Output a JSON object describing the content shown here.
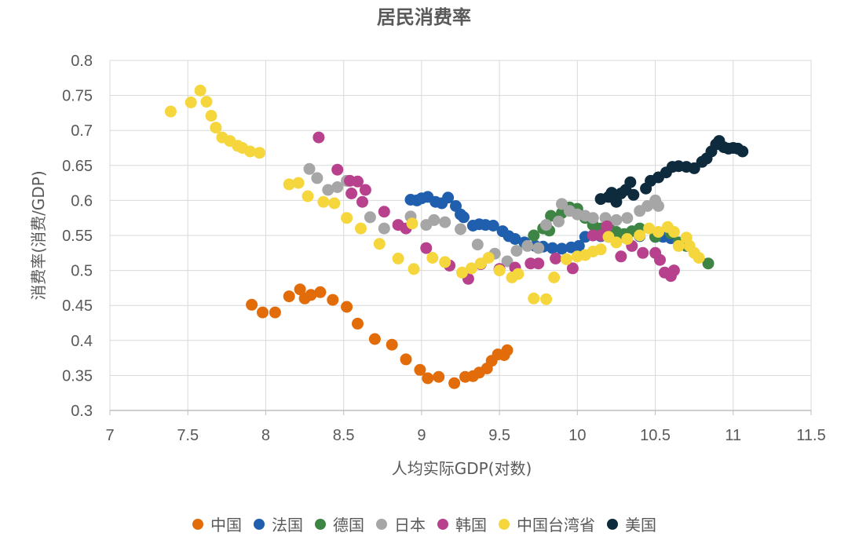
{
  "chart_data": {
    "type": "scatter",
    "title": "居民消费率",
    "xlabel": "人均实际GDP(对数)",
    "ylabel": "消费率(消费/GDP)",
    "xlim": [
      7,
      11.5
    ],
    "ylim": [
      0.3,
      0.8
    ],
    "x_ticks": [
      "7",
      "7.5",
      "8",
      "8.5",
      "9",
      "9.5",
      "10",
      "10.5",
      "11",
      "11.5"
    ],
    "y_ticks": [
      "0.3",
      "0.35",
      "0.4",
      "0.45",
      "0.5",
      "0.55",
      "0.6",
      "0.65",
      "0.7",
      "0.75",
      "0.8"
    ],
    "grid": true,
    "legend_position": "bottom",
    "series": [
      {
        "name": "中国",
        "color": "#E36C0A",
        "points": [
          [
            7.91,
            0.451
          ],
          [
            7.98,
            0.44
          ],
          [
            8.06,
            0.44
          ],
          [
            8.15,
            0.463
          ],
          [
            8.22,
            0.473
          ],
          [
            8.25,
            0.46
          ],
          [
            8.29,
            0.465
          ],
          [
            8.35,
            0.469
          ],
          [
            8.43,
            0.458
          ],
          [
            8.52,
            0.448
          ],
          [
            8.59,
            0.424
          ],
          [
            8.7,
            0.402
          ],
          [
            8.81,
            0.394
          ],
          [
            8.9,
            0.373
          ],
          [
            8.99,
            0.358
          ],
          [
            9.04,
            0.346
          ],
          [
            9.11,
            0.348
          ],
          [
            9.21,
            0.339
          ],
          [
            9.28,
            0.348
          ],
          [
            9.33,
            0.349
          ],
          [
            9.37,
            0.354
          ],
          [
            9.42,
            0.36
          ],
          [
            9.45,
            0.371
          ],
          [
            9.49,
            0.38
          ],
          [
            9.53,
            0.379
          ],
          [
            9.55,
            0.386
          ]
        ]
      },
      {
        "name": "法国",
        "color": "#1F5FAE",
        "points": [
          [
            8.93,
            0.601
          ],
          [
            8.97,
            0.6
          ],
          [
            9.0,
            0.603
          ],
          [
            9.04,
            0.605
          ],
          [
            9.09,
            0.598
          ],
          [
            9.13,
            0.596
          ],
          [
            9.17,
            0.604
          ],
          [
            9.22,
            0.592
          ],
          [
            9.25,
            0.58
          ],
          [
            9.27,
            0.576
          ],
          [
            9.33,
            0.564
          ],
          [
            9.37,
            0.566
          ],
          [
            9.41,
            0.565
          ],
          [
            9.46,
            0.564
          ],
          [
            9.52,
            0.556
          ],
          [
            9.56,
            0.549
          ],
          [
            9.6,
            0.545
          ],
          [
            9.66,
            0.54
          ],
          [
            9.73,
            0.535
          ],
          [
            9.78,
            0.534
          ],
          [
            9.84,
            0.532
          ],
          [
            9.9,
            0.531
          ],
          [
            9.96,
            0.533
          ],
          [
            10.01,
            0.535
          ],
          [
            10.05,
            0.548
          ],
          [
            10.1,
            0.55
          ],
          [
            10.15,
            0.549
          ],
          [
            10.2,
            0.548
          ],
          [
            10.3,
            0.548
          ],
          [
            10.4,
            0.549
          ],
          [
            10.5,
            0.548
          ],
          [
            10.55,
            0.548
          ],
          [
            10.6,
            0.546
          ]
        ]
      },
      {
        "name": "德国",
        "color": "#3E8545",
        "points": [
          [
            9.72,
            0.55
          ],
          [
            9.78,
            0.56
          ],
          [
            9.82,
            0.557
          ],
          [
            9.83,
            0.578
          ],
          [
            9.9,
            0.582
          ],
          [
            9.95,
            0.59
          ],
          [
            10.0,
            0.588
          ],
          [
            10.05,
            0.575
          ],
          [
            10.1,
            0.565
          ],
          [
            10.15,
            0.56
          ],
          [
            10.2,
            0.563
          ],
          [
            10.25,
            0.555
          ],
          [
            10.3,
            0.552
          ],
          [
            10.35,
            0.556
          ],
          [
            10.4,
            0.56
          ],
          [
            10.5,
            0.548
          ],
          [
            10.6,
            0.553
          ],
          [
            10.65,
            0.54
          ],
          [
            10.7,
            0.535
          ],
          [
            10.84,
            0.51
          ]
        ]
      },
      {
        "name": "日本",
        "color": "#A6A6A6",
        "points": [
          [
            8.28,
            0.645
          ],
          [
            8.33,
            0.632
          ],
          [
            8.4,
            0.615
          ],
          [
            8.46,
            0.619
          ],
          [
            8.52,
            0.628
          ],
          [
            8.67,
            0.576
          ],
          [
            8.76,
            0.56
          ],
          [
            8.93,
            0.577
          ],
          [
            9.03,
            0.565
          ],
          [
            9.08,
            0.572
          ],
          [
            9.15,
            0.569
          ],
          [
            9.25,
            0.559
          ],
          [
            9.36,
            0.537
          ],
          [
            9.47,
            0.524
          ],
          [
            9.55,
            0.513
          ],
          [
            9.61,
            0.528
          ],
          [
            9.68,
            0.535
          ],
          [
            9.75,
            0.532
          ],
          [
            9.8,
            0.565
          ],
          [
            9.88,
            0.57
          ],
          [
            9.9,
            0.595
          ],
          [
            9.95,
            0.585
          ],
          [
            10.0,
            0.58
          ],
          [
            10.05,
            0.578
          ],
          [
            10.1,
            0.575
          ],
          [
            10.18,
            0.575
          ],
          [
            10.25,
            0.572
          ],
          [
            10.32,
            0.575
          ],
          [
            10.4,
            0.585
          ],
          [
            10.45,
            0.592
          ],
          [
            10.5,
            0.6
          ],
          [
            10.52,
            0.592
          ]
        ]
      },
      {
        "name": "韩国",
        "color": "#B8418E",
        "points": [
          [
            8.34,
            0.69
          ],
          [
            8.46,
            0.644
          ],
          [
            8.54,
            0.628
          ],
          [
            8.59,
            0.627
          ],
          [
            8.62,
            0.598
          ],
          [
            8.64,
            0.615
          ],
          [
            8.55,
            0.61
          ],
          [
            8.76,
            0.584
          ],
          [
            8.85,
            0.565
          ],
          [
            8.9,
            0.56
          ],
          [
            9.03,
            0.532
          ],
          [
            9.18,
            0.507
          ],
          [
            9.3,
            0.488
          ],
          [
            9.38,
            0.509
          ],
          [
            9.5,
            0.502
          ],
          [
            9.6,
            0.504
          ],
          [
            9.7,
            0.51
          ],
          [
            9.75,
            0.51
          ],
          [
            9.86,
            0.517
          ],
          [
            9.97,
            0.503
          ],
          [
            10.1,
            0.55
          ],
          [
            10.15,
            0.55
          ],
          [
            10.19,
            0.563
          ],
          [
            10.28,
            0.52
          ],
          [
            10.35,
            0.535
          ],
          [
            10.42,
            0.525
          ],
          [
            10.5,
            0.525
          ],
          [
            10.53,
            0.515
          ],
          [
            10.56,
            0.497
          ],
          [
            10.6,
            0.492
          ],
          [
            10.62,
            0.5
          ]
        ]
      },
      {
        "name": "中国台湾省",
        "color": "#F5D63C",
        "points": [
          [
            7.39,
            0.727
          ],
          [
            7.52,
            0.74
          ],
          [
            7.58,
            0.757
          ],
          [
            7.62,
            0.741
          ],
          [
            7.65,
            0.721
          ],
          [
            7.68,
            0.704
          ],
          [
            7.72,
            0.69
          ],
          [
            7.77,
            0.685
          ],
          [
            7.82,
            0.678
          ],
          [
            7.85,
            0.675
          ],
          [
            7.9,
            0.67
          ],
          [
            7.96,
            0.668
          ],
          [
            8.15,
            0.623
          ],
          [
            8.21,
            0.625
          ],
          [
            8.27,
            0.606
          ],
          [
            8.37,
            0.598
          ],
          [
            8.44,
            0.596
          ],
          [
            8.52,
            0.575
          ],
          [
            8.61,
            0.56
          ],
          [
            8.73,
            0.538
          ],
          [
            8.85,
            0.517
          ],
          [
            8.94,
            0.567
          ],
          [
            8.95,
            0.502
          ],
          [
            9.07,
            0.518
          ],
          [
            9.15,
            0.512
          ],
          [
            9.26,
            0.497
          ],
          [
            9.32,
            0.503
          ],
          [
            9.38,
            0.51
          ],
          [
            9.43,
            0.518
          ],
          [
            9.5,
            0.5
          ],
          [
            9.58,
            0.49
          ],
          [
            9.62,
            0.495
          ],
          [
            9.72,
            0.46
          ],
          [
            9.8,
            0.459
          ],
          [
            9.85,
            0.49
          ],
          [
            9.93,
            0.516
          ],
          [
            10.0,
            0.52
          ],
          [
            10.05,
            0.522
          ],
          [
            10.1,
            0.527
          ],
          [
            10.15,
            0.53
          ],
          [
            10.2,
            0.548
          ],
          [
            10.25,
            0.54
          ],
          [
            10.32,
            0.545
          ],
          [
            10.4,
            0.55
          ],
          [
            10.46,
            0.56
          ],
          [
            10.52,
            0.555
          ],
          [
            10.58,
            0.562
          ],
          [
            10.62,
            0.555
          ],
          [
            10.65,
            0.535
          ],
          [
            10.7,
            0.547
          ],
          [
            10.72,
            0.535
          ],
          [
            10.75,
            0.525
          ],
          [
            10.78,
            0.518
          ]
        ]
      },
      {
        "name": "美国",
        "color": "#0E2B3D",
        "points": [
          [
            10.15,
            0.602
          ],
          [
            10.2,
            0.605
          ],
          [
            10.22,
            0.611
          ],
          [
            10.25,
            0.598
          ],
          [
            10.28,
            0.61
          ],
          [
            10.31,
            0.615
          ],
          [
            10.34,
            0.626
          ],
          [
            10.36,
            0.608
          ],
          [
            10.44,
            0.617
          ],
          [
            10.47,
            0.628
          ],
          [
            10.52,
            0.633
          ],
          [
            10.57,
            0.64
          ],
          [
            10.61,
            0.648
          ],
          [
            10.65,
            0.649
          ],
          [
            10.7,
            0.648
          ],
          [
            10.75,
            0.646
          ],
          [
            10.8,
            0.655
          ],
          [
            10.83,
            0.66
          ],
          [
            10.86,
            0.67
          ],
          [
            10.89,
            0.68
          ],
          [
            10.91,
            0.685
          ],
          [
            10.94,
            0.676
          ],
          [
            10.97,
            0.674
          ],
          [
            11.0,
            0.675
          ],
          [
            11.03,
            0.674
          ],
          [
            11.06,
            0.67
          ]
        ]
      }
    ]
  }
}
